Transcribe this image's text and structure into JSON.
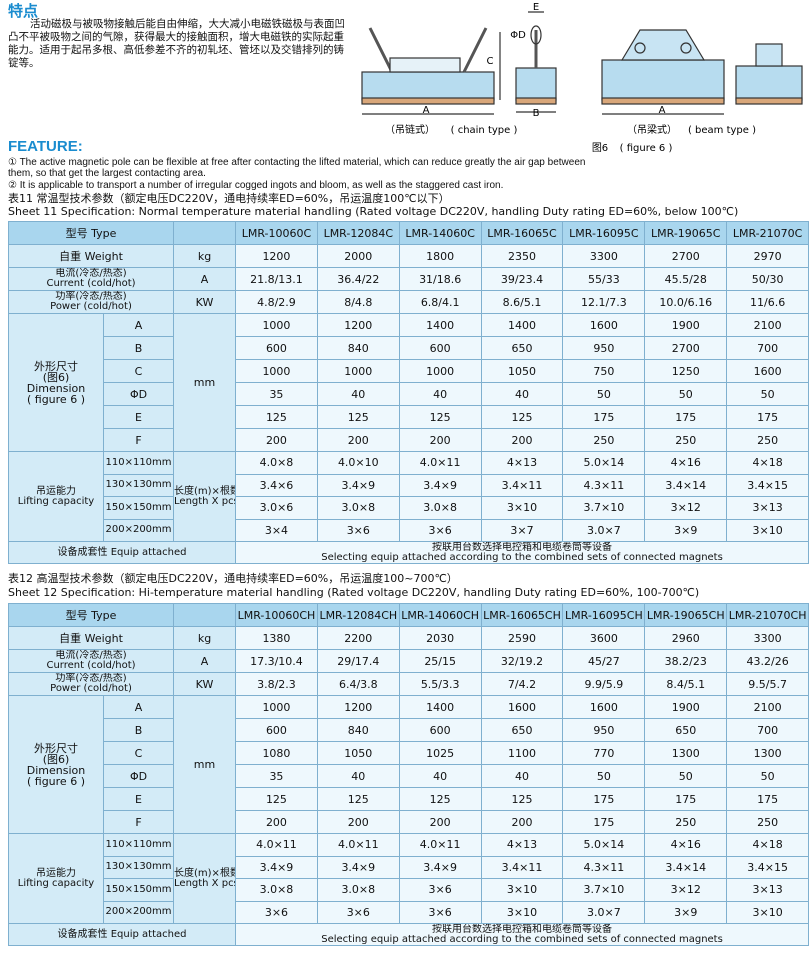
{
  "header": {
    "title": "特点",
    "text": "活动磁极与被吸物接触后能自由伸缩，大大减小电磁铁磁极与表面凹凸不平被吸物之间的气隙，获得最大的接触面积，增大电磁铁的实际起重能力。适用于起吊多根、高低参差不齐的初轧坯、管坯以及交错排列的铸锭等。"
  },
  "figure": {
    "chain_cn": "（吊链式）",
    "chain_en": "( chain type )",
    "beam_cn": "（吊梁式）",
    "beam_en": "( beam type )",
    "caption_cn": "图6",
    "caption_en": "( figure 6 )",
    "dims": [
      "A",
      "B",
      "C",
      "E",
      "ΦD",
      "A"
    ]
  },
  "feature": {
    "title": "FEATURE:",
    "items": [
      "① The active magnetic pole can be flexible at free after contacting the lifted material, which can reduce greatly the air gap between them, so that get the largest contacting area.",
      "② It is applicable to transport a number of irregular cogged ingots and bloom, as well as the staggered cast iron."
    ]
  },
  "tables": [
    {
      "caption_cn": "表11  常温型技术参数（额定电压DC220V，通电持续率ED=60%，吊运温度100℃以下）",
      "caption_en": "Sheet 11 Specification: Normal temperature material handling  (Rated voltage DC220V, handling Duty rating ED=60%, below 100℃)",
      "type_label": "型号  Type",
      "models": [
        "LMR-10060C",
        "LMR-12084C",
        "LMR-14060C",
        "LMR-16065C",
        "LMR-16095C",
        "LMR-19065C",
        "LMR-21070C"
      ],
      "weight": {
        "label": "自重  Weight",
        "unit": "kg",
        "values": [
          1200,
          2000,
          1800,
          2350,
          3300,
          2700,
          2970
        ]
      },
      "current": {
        "label_cn": "电流(冷态/热态)",
        "label_en": "Current (cold/hot)",
        "unit": "A",
        "values": [
          "21.8/13.1",
          "36.4/22",
          "31/18.6",
          "39/23.4",
          "55/33",
          "45.5/28",
          "50/30"
        ]
      },
      "power": {
        "label_cn": "功率(冷态/热态)",
        "label_en": "Power (cold/hot)",
        "unit": "KW",
        "values": [
          "4.8/2.9",
          "8/4.8",
          "6.8/4.1",
          "8.6/5.1",
          "12.1/7.3",
          "10.0/6.16",
          "11/6.6"
        ]
      },
      "dimension": {
        "label": [
          "外形尺寸",
          "(图6)",
          "Dimension",
          "( figure 6 )"
        ],
        "unit": "mm",
        "rows": [
          {
            "name": "A",
            "values": [
              1000,
              1200,
              1400,
              1400,
              1600,
              1900,
              2100
            ]
          },
          {
            "name": "B",
            "values": [
              600,
              840,
              600,
              650,
              950,
              2700,
              700
            ]
          },
          {
            "name": "C",
            "values": [
              1000,
              1000,
              1000,
              1050,
              750,
              1250,
              1600
            ]
          },
          {
            "name": "ΦD",
            "values": [
              35,
              40,
              40,
              40,
              50,
              50,
              50
            ]
          },
          {
            "name": "E",
            "values": [
              125,
              125,
              125,
              125,
              175,
              175,
              175
            ]
          },
          {
            "name": "F",
            "values": [
              200,
              200,
              200,
              200,
              250,
              250,
              250
            ]
          }
        ]
      },
      "lifting": {
        "label_cn": "吊运能力",
        "label_en": "Lifting capacity",
        "unit_cn": "长度(m)×根数",
        "unit_en": "Length X pcs",
        "rows": [
          {
            "size": "110×110mm",
            "values": [
              "4.0×8",
              "4.0×10",
              "4.0×11",
              "4×13",
              "5.0×14",
              "4×16",
              "4×18"
            ]
          },
          {
            "size": "130×130mm",
            "values": [
              "3.4×6",
              "3.4×9",
              "3.4×9",
              "3.4×11",
              "4.3×11",
              "3.4×14",
              "3.4×15"
            ]
          },
          {
            "size": "150×150mm",
            "values": [
              "3.0×6",
              "3.0×8",
              "3.0×8",
              "3×10",
              "3.7×10",
              "3×12",
              "3×13"
            ]
          },
          {
            "size": "200×200mm",
            "values": [
              "3×4",
              "3×6",
              "3×6",
              "3×7",
              "3.0×7",
              "3×9",
              "3×10"
            ]
          }
        ]
      },
      "equip": {
        "label": "设备成套性  Equip attached",
        "note_cn": "按联用台数选择电控箱和电缆卷筒等设备",
        "note_en": "Selecting equip attached according to the combined sets of connected magnets"
      }
    },
    {
      "caption_cn": "表12  高温型技术参数（额定电压DC220V，通电持续率ED=60%，吊运温度100~700℃）",
      "caption_en": "Sheet 12 Specification: Hi-temperature material handling  (Rated voltage DC220V, handling Duty rating ED=60%, 100-700℃)",
      "type_label": "型号  Type",
      "models": [
        "LMR-10060CH",
        "LMR-12084CH",
        "LMR-14060CH",
        "LMR-16065CH",
        "LMR-16095CH",
        "LMR-19065CH",
        "LMR-21070CH"
      ],
      "weight": {
        "label": "自重  Weight",
        "unit": "kg",
        "values": [
          1380,
          2200,
          2030,
          2590,
          3600,
          2960,
          3300
        ]
      },
      "current": {
        "label_cn": "电流(冷态/热态)",
        "label_en": "Current (cold/hot)",
        "unit": "A",
        "values": [
          "17.3/10.4",
          "29/17.4",
          "25/15",
          "32/19.2",
          "45/27",
          "38.2/23",
          "43.2/26"
        ]
      },
      "power": {
        "label_cn": "功率(冷态/热态)",
        "label_en": "Power (cold/hot)",
        "unit": "KW",
        "values": [
          "3.8/2.3",
          "6.4/3.8",
          "5.5/3.3",
          "7/4.2",
          "9.9/5.9",
          "8.4/5.1",
          "9.5/5.7"
        ]
      },
      "dimension": {
        "label": [
          "外形尺寸",
          "(图6)",
          "Dimension",
          "( figure 6 )"
        ],
        "unit": "mm",
        "rows": [
          {
            "name": "A",
            "values": [
              1000,
              1200,
              1400,
              1600,
              1600,
              1900,
              2100
            ]
          },
          {
            "name": "B",
            "values": [
              600,
              840,
              600,
              650,
              950,
              650,
              700
            ]
          },
          {
            "name": "C",
            "values": [
              1080,
              1050,
              1025,
              1100,
              770,
              1300,
              1300
            ]
          },
          {
            "name": "ΦD",
            "values": [
              35,
              40,
              40,
              40,
              50,
              50,
              50
            ]
          },
          {
            "name": "E",
            "values": [
              125,
              125,
              125,
              125,
              175,
              175,
              175
            ]
          },
          {
            "name": "F",
            "values": [
              200,
              200,
              200,
              200,
              175,
              250,
              250
            ]
          }
        ]
      },
      "lifting": {
        "label_cn": "吊运能力",
        "label_en": "Lifting capacity",
        "unit_cn": "长度(m)×根数",
        "unit_en": "Length X pcs",
        "rows": [
          {
            "size": "110×110mm",
            "values": [
              "4.0×11",
              "4.0×11",
              "4.0×11",
              "4×13",
              "5.0×14",
              "4×16",
              "4×18"
            ]
          },
          {
            "size": "130×130mm",
            "values": [
              "3.4×9",
              "3.4×9",
              "3.4×9",
              "3.4×11",
              "4.3×11",
              "3.4×14",
              "3.4×15"
            ]
          },
          {
            "size": "150×150mm",
            "values": [
              "3.0×8",
              "3.0×8",
              "3×6",
              "3×10",
              "3.7×10",
              "3×12",
              "3×13"
            ]
          },
          {
            "size": "200×200mm",
            "values": [
              "3×6",
              "3×6",
              "3×6",
              "3×10",
              "3.0×7",
              "3×9",
              "3×10"
            ]
          }
        ]
      },
      "equip": {
        "label": "设备成套性  Equip attached",
        "note_cn": "按联用台数选择电控箱和电缆卷筒等设备",
        "note_en": "Selecting equip attached according to the combined sets of connected magnets"
      }
    }
  ]
}
